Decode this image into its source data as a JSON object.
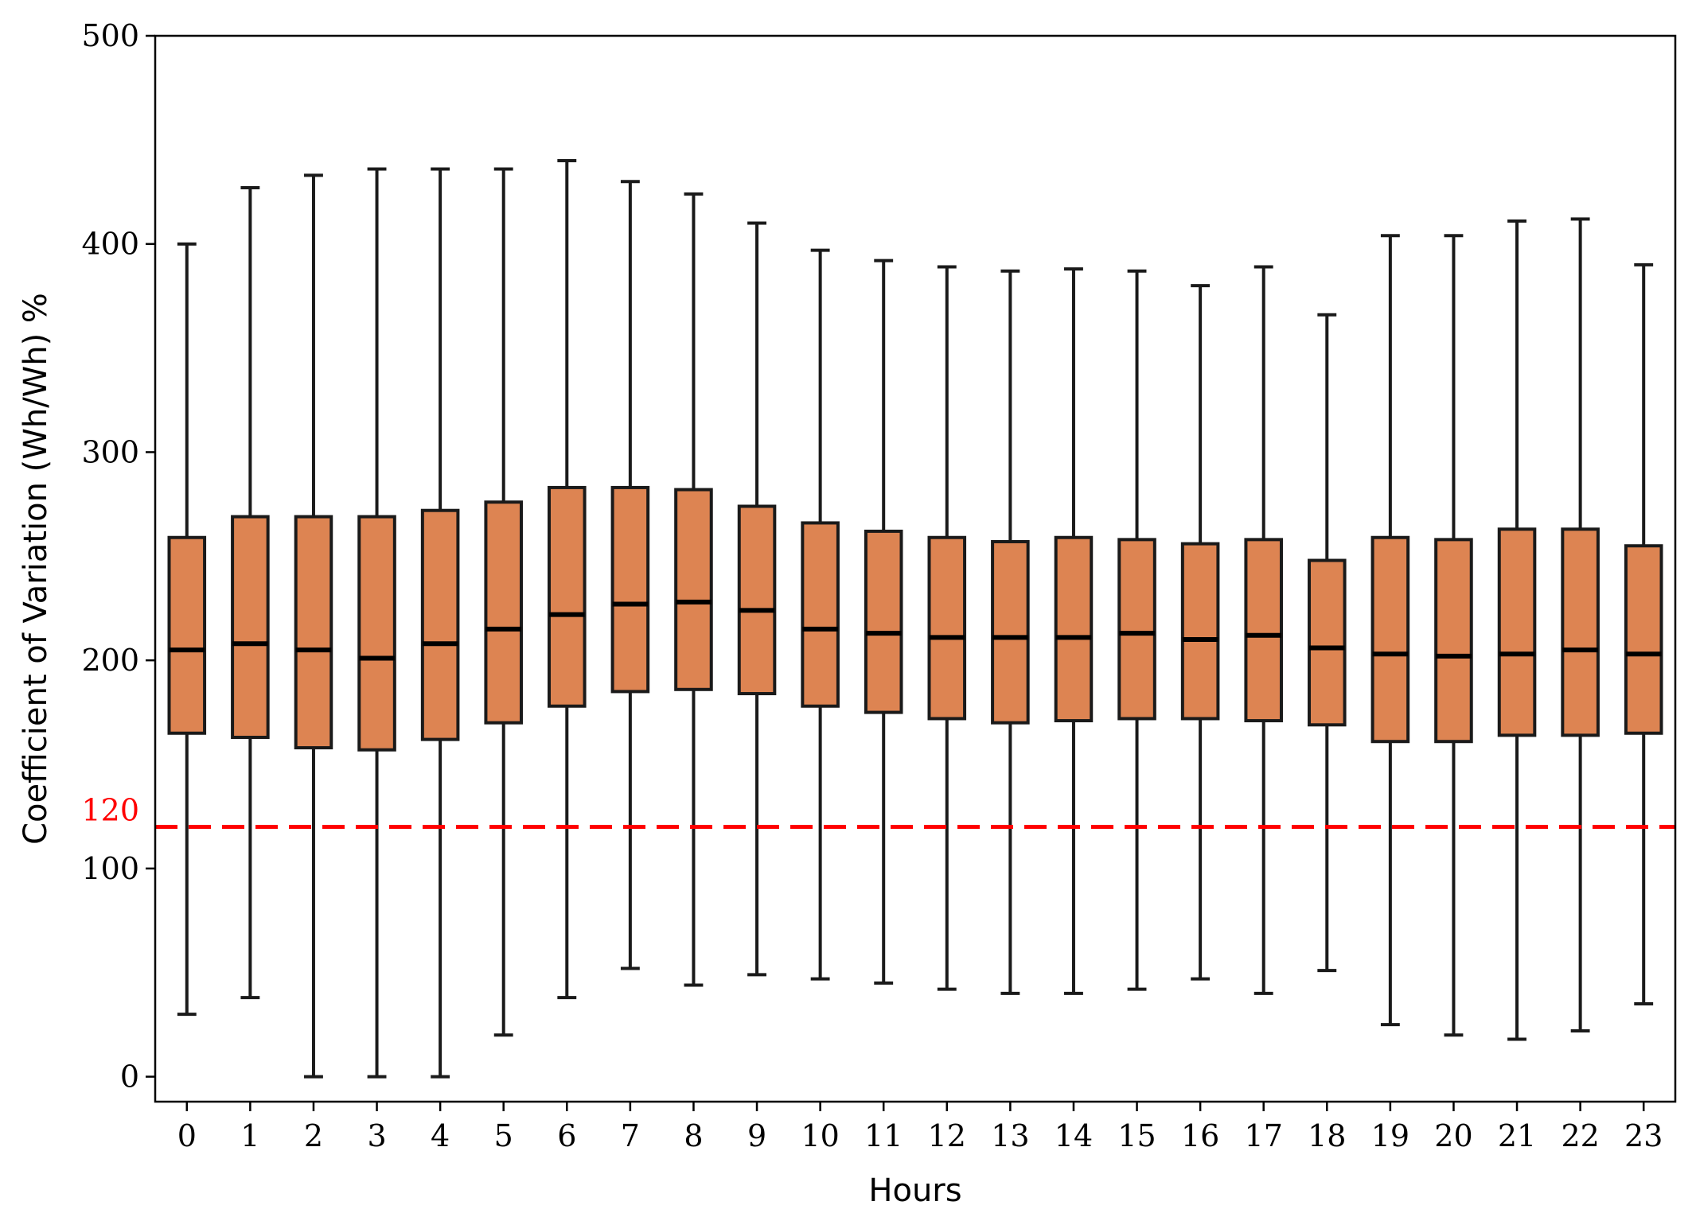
{
  "chart_data": {
    "type": "box",
    "title": "",
    "xlabel": "Hours",
    "ylabel": "Coefficient of Variation (Wh/Wh) %",
    "ylim": [
      -12,
      500
    ],
    "yticks": [
      0,
      100,
      200,
      300,
      400,
      500
    ],
    "grid": false,
    "categories": [
      "0",
      "1",
      "2",
      "3",
      "4",
      "5",
      "6",
      "7",
      "8",
      "9",
      "10",
      "11",
      "12",
      "13",
      "14",
      "15",
      "16",
      "17",
      "18",
      "19",
      "20",
      "21",
      "22",
      "23"
    ],
    "boxes": [
      {
        "whislo": 30,
        "q1": 165,
        "med": 205,
        "q3": 259,
        "whishi": 400
      },
      {
        "whislo": 38,
        "q1": 163,
        "med": 208,
        "q3": 269,
        "whishi": 427
      },
      {
        "whislo": 0,
        "q1": 158,
        "med": 205,
        "q3": 269,
        "whishi": 433
      },
      {
        "whislo": 0,
        "q1": 157,
        "med": 201,
        "q3": 269,
        "whishi": 436
      },
      {
        "whislo": 0,
        "q1": 162,
        "med": 208,
        "q3": 272,
        "whishi": 436
      },
      {
        "whislo": 20,
        "q1": 170,
        "med": 215,
        "q3": 276,
        "whishi": 436
      },
      {
        "whislo": 38,
        "q1": 178,
        "med": 222,
        "q3": 283,
        "whishi": 440
      },
      {
        "whislo": 52,
        "q1": 185,
        "med": 227,
        "q3": 283,
        "whishi": 430
      },
      {
        "whislo": 44,
        "q1": 186,
        "med": 228,
        "q3": 282,
        "whishi": 424
      },
      {
        "whislo": 49,
        "q1": 184,
        "med": 224,
        "q3": 274,
        "whishi": 410
      },
      {
        "whislo": 47,
        "q1": 178,
        "med": 215,
        "q3": 266,
        "whishi": 397
      },
      {
        "whislo": 45,
        "q1": 175,
        "med": 213,
        "q3": 262,
        "whishi": 392
      },
      {
        "whislo": 42,
        "q1": 172,
        "med": 211,
        "q3": 259,
        "whishi": 389
      },
      {
        "whislo": 40,
        "q1": 170,
        "med": 211,
        "q3": 257,
        "whishi": 387
      },
      {
        "whislo": 40,
        "q1": 171,
        "med": 211,
        "q3": 259,
        "whishi": 388
      },
      {
        "whislo": 42,
        "q1": 172,
        "med": 213,
        "q3": 258,
        "whishi": 387
      },
      {
        "whislo": 47,
        "q1": 172,
        "med": 210,
        "q3": 256,
        "whishi": 380
      },
      {
        "whislo": 40,
        "q1": 171,
        "med": 212,
        "q3": 258,
        "whishi": 389
      },
      {
        "whislo": 51,
        "q1": 169,
        "med": 206,
        "q3": 248,
        "whishi": 366
      },
      {
        "whislo": 25,
        "q1": 161,
        "med": 203,
        "q3": 259,
        "whishi": 404
      },
      {
        "whislo": 20,
        "q1": 161,
        "med": 202,
        "q3": 258,
        "whishi": 404
      },
      {
        "whislo": 18,
        "q1": 164,
        "med": 203,
        "q3": 263,
        "whishi": 411
      },
      {
        "whislo": 22,
        "q1": 164,
        "med": 205,
        "q3": 263,
        "whishi": 412
      },
      {
        "whislo": 35,
        "q1": 165,
        "med": 203,
        "q3": 255,
        "whishi": 390
      }
    ],
    "reference_line": {
      "value": 120,
      "label": "120",
      "color": "#ff0000",
      "style": "dashed"
    },
    "box_color": "#dd8452",
    "edge_color": "#1a1a1a"
  }
}
